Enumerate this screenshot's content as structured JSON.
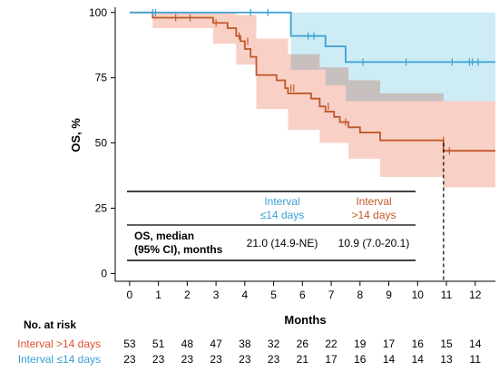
{
  "chart_data": {
    "type": "line",
    "chart_style": "kaplan-meier",
    "xlabel": "Months",
    "ylabel": "OS, %",
    "xlim": [
      -0.5,
      12.7
    ],
    "ylim": [
      -3,
      102
    ],
    "xticks": [
      0,
      1,
      2,
      3,
      4,
      5,
      6,
      7,
      8,
      9,
      10,
      11,
      12
    ],
    "yticks": [
      0,
      25,
      50,
      75,
      100
    ],
    "grid": false,
    "series": [
      {
        "name": "Interval ≤14 days",
        "color": "#3aa0d4",
        "band_color": "#bde5f2",
        "x": [
          0,
          5.6,
          5.6,
          6.8,
          6.8,
          7.5,
          7.5,
          12.7
        ],
        "y": [
          100,
          100,
          91,
          91,
          87,
          87,
          81,
          81
        ],
        "ci_x": [
          0,
          5.6,
          5.6,
          6.8,
          6.8,
          7.5,
          7.5,
          12.7
        ],
        "ci_lo": [
          100,
          100,
          78,
          78,
          72,
          72,
          66,
          66
        ],
        "ci_hi": [
          100,
          100,
          100,
          100,
          100,
          100,
          100,
          100
        ],
        "censor_x": [
          0.8,
          0.9,
          4.2,
          4.8,
          6.2,
          6.4,
          8.1,
          9.6,
          11.2,
          11.8,
          11.9,
          12.1
        ],
        "censor_y": [
          100,
          100,
          100,
          100,
          91,
          91,
          81,
          81,
          81,
          81,
          81,
          81
        ]
      },
      {
        "name": "Interval >14 days",
        "color": "#c0582a",
        "band_color": "#f6c4b8",
        "x": [
          0,
          0.8,
          0.8,
          1.3,
          1.3,
          2.9,
          2.9,
          3.4,
          3.4,
          3.7,
          3.7,
          3.85,
          3.85,
          4.0,
          4.0,
          4.2,
          4.2,
          4.4,
          4.4,
          5.1,
          5.1,
          5.4,
          5.4,
          5.5,
          5.5,
          6.3,
          6.3,
          6.6,
          6.6,
          6.8,
          6.8,
          7.1,
          7.1,
          7.3,
          7.3,
          7.6,
          7.6,
          8.0,
          8.0,
          8.7,
          8.7,
          9.4,
          9.4,
          10.9,
          10.9,
          12.7
        ],
        "y": [
          100,
          100,
          98,
          98,
          98,
          98,
          96,
          96,
          94,
          94,
          91,
          91,
          89,
          89,
          86,
          86,
          83,
          83,
          76,
          76,
          74,
          74,
          71,
          71,
          69,
          69,
          67,
          67,
          64,
          64,
          62,
          62,
          60,
          60,
          58,
          58,
          56,
          56,
          54,
          54,
          51,
          51,
          51,
          51,
          47,
          47
        ],
        "ci_x": [
          0,
          0.8,
          0.8,
          2.9,
          2.9,
          3.7,
          3.7,
          4.4,
          4.4,
          5.5,
          5.5,
          6.6,
          6.6,
          7.6,
          7.6,
          8.7,
          8.7,
          10.9,
          10.9,
          12.7
        ],
        "ci_lo": [
          100,
          100,
          94,
          94,
          88,
          88,
          80,
          80,
          63,
          63,
          55,
          55,
          50,
          50,
          44,
          44,
          37,
          37,
          33,
          33
        ],
        "ci_hi": [
          100,
          100,
          100,
          100,
          100,
          100,
          99,
          99,
          90,
          90,
          84,
          84,
          79,
          79,
          74,
          74,
          69,
          69,
          66,
          66
        ],
        "censor_x": [
          1.6,
          2.1,
          3.0,
          3.8,
          4.1,
          5.6,
          5.7,
          6.9,
          7.5,
          10.9,
          11.1
        ],
        "censor_y": [
          98,
          98,
          96,
          91,
          89,
          71,
          71,
          64,
          58,
          51,
          47
        ]
      }
    ],
    "median_marker": {
      "x": 10.9,
      "y": 50
    },
    "summary_table": {
      "col_headers": [
        {
          "lines": [
            "Interval",
            "≤14 days"
          ],
          "color": "#3aa0d4"
        },
        {
          "lines": [
            "Interval",
            ">14 days"
          ],
          "color": "#c0582a"
        }
      ],
      "row_label": [
        "OS, median",
        "(95% CI), months"
      ],
      "values": [
        "21.0 (14.9-NE)",
        "10.9 (7.0-20.1)"
      ]
    },
    "risk_table": {
      "title": "No. at risk",
      "times": [
        0,
        1,
        2,
        3,
        4,
        5,
        6,
        7,
        8,
        9,
        10,
        11,
        12
      ],
      "rows": [
        {
          "label": "Interval >14 days",
          "color": "#e0502e",
          "values": [
            53,
            51,
            48,
            47,
            38,
            32,
            26,
            22,
            19,
            17,
            16,
            15,
            14
          ]
        },
        {
          "label": "Interval ≤14 days",
          "color": "#3aa0d4",
          "values": [
            23,
            23,
            23,
            23,
            23,
            23,
            21,
            17,
            16,
            14,
            14,
            13,
            11
          ]
        }
      ]
    }
  }
}
